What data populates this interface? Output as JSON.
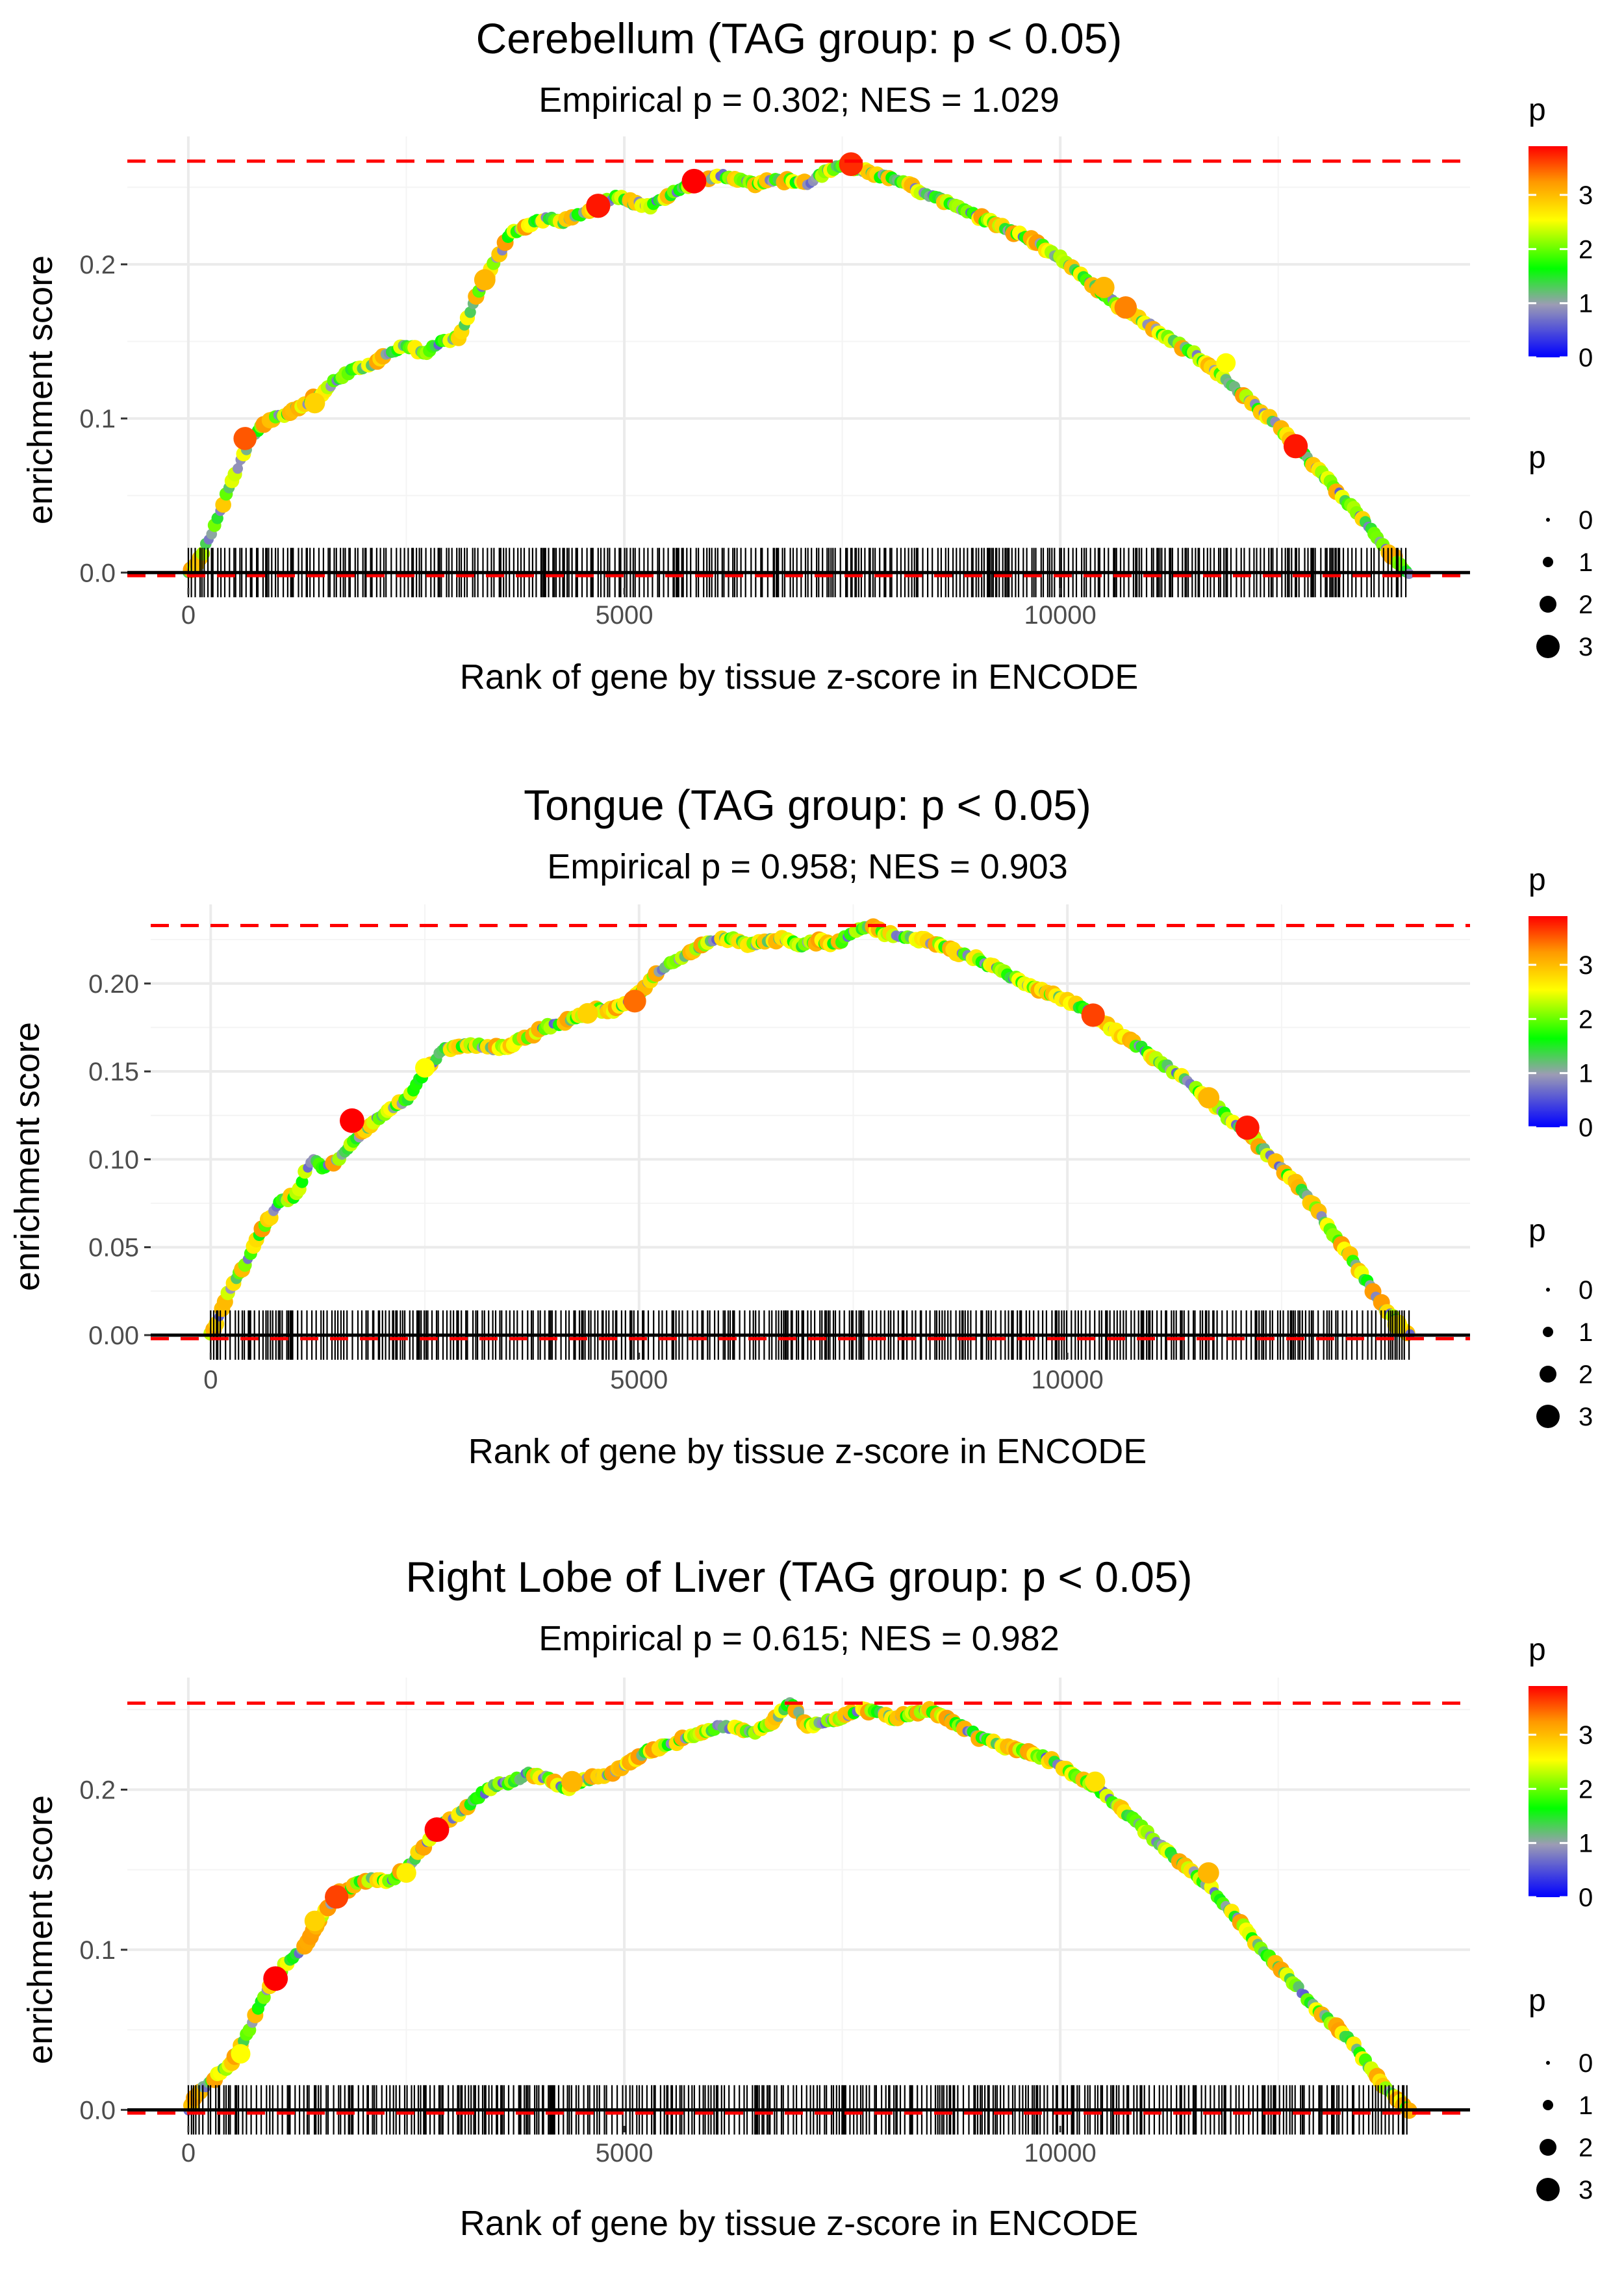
{
  "chart_data": [
    {
      "type": "line",
      "title": "Cerebellum (TAG group: p < 0.05)",
      "subtitle": "Empirical p = 0.302; NES = 1.029",
      "xlabel": "Rank of gene by tissue z-score in ENCODE",
      "ylabel": "enrichment score",
      "xlim": [
        -700,
        14700
      ],
      "ylim": [
        -0.01,
        0.283
      ],
      "x_ticks": [
        0,
        5000,
        10000
      ],
      "x_tick_labels": [
        "0",
        "5000",
        "10000"
      ],
      "y_ticks": [
        0.0,
        0.1,
        0.2
      ],
      "y_tick_labels": [
        "0.0",
        "0.1",
        "0.2"
      ],
      "max_es": 0.267,
      "min_es": -0.002,
      "n_genes": 14000,
      "curve": [
        [
          0,
          0
        ],
        [
          100,
          0.005
        ],
        [
          300,
          0.03
        ],
        [
          500,
          0.06
        ],
        [
          700,
          0.085
        ],
        [
          900,
          0.098
        ],
        [
          1100,
          0.103
        ],
        [
          1300,
          0.108
        ],
        [
          1500,
          0.115
        ],
        [
          1700,
          0.125
        ],
        [
          1900,
          0.132
        ],
        [
          2100,
          0.135
        ],
        [
          2300,
          0.142
        ],
        [
          2500,
          0.148
        ],
        [
          2700,
          0.142
        ],
        [
          2900,
          0.15
        ],
        [
          3100,
          0.153
        ],
        [
          3300,
          0.178
        ],
        [
          3500,
          0.2
        ],
        [
          3700,
          0.22
        ],
        [
          3900,
          0.225
        ],
        [
          4100,
          0.23
        ],
        [
          4300,
          0.228
        ],
        [
          4500,
          0.232
        ],
        [
          4700,
          0.238
        ],
        [
          4900,
          0.244
        ],
        [
          5100,
          0.24
        ],
        [
          5300,
          0.238
        ],
        [
          5500,
          0.245
        ],
        [
          5700,
          0.25
        ],
        [
          5900,
          0.255
        ],
        [
          6100,
          0.258
        ],
        [
          6300,
          0.255
        ],
        [
          6500,
          0.252
        ],
        [
          6700,
          0.255
        ],
        [
          6900,
          0.254
        ],
        [
          7100,
          0.252
        ],
        [
          7300,
          0.26
        ],
        [
          7500,
          0.265
        ],
        [
          7700,
          0.262
        ],
        [
          7900,
          0.258
        ],
        [
          8100,
          0.256
        ],
        [
          8300,
          0.25
        ],
        [
          8500,
          0.245
        ],
        [
          8700,
          0.24
        ],
        [
          8900,
          0.235
        ],
        [
          9100,
          0.23
        ],
        [
          9300,
          0.225
        ],
        [
          9500,
          0.22
        ],
        [
          9700,
          0.215
        ],
        [
          9900,
          0.208
        ],
        [
          10100,
          0.2
        ],
        [
          10300,
          0.19
        ],
        [
          10500,
          0.18
        ],
        [
          10700,
          0.172
        ],
        [
          10900,
          0.165
        ],
        [
          11100,
          0.158
        ],
        [
          11300,
          0.15
        ],
        [
          11500,
          0.143
        ],
        [
          11700,
          0.135
        ],
        [
          11900,
          0.125
        ],
        [
          12100,
          0.115
        ],
        [
          12300,
          0.105
        ],
        [
          12500,
          0.095
        ],
        [
          12700,
          0.082
        ],
        [
          12900,
          0.07
        ],
        [
          13100,
          0.058
        ],
        [
          13300,
          0.045
        ],
        [
          13500,
          0.032
        ],
        [
          13700,
          0.018
        ],
        [
          13900,
          0.005
        ],
        [
          14000,
          0
        ]
      ],
      "highlight_points": [
        [
          650,
          0.087,
          3.5
        ],
        [
          1450,
          0.11,
          2.8
        ],
        [
          3400,
          0.19,
          3.0
        ],
        [
          4700,
          0.238,
          3.8
        ],
        [
          5800,
          0.254,
          3.9
        ],
        [
          7600,
          0.265,
          3.7
        ],
        [
          10500,
          0.185,
          3.0
        ],
        [
          10750,
          0.172,
          3.3
        ],
        [
          11900,
          0.136,
          2.5
        ],
        [
          12700,
          0.082,
          3.8
        ]
      ],
      "color_legend": {
        "title": "p",
        "labels": [
          "0",
          "1",
          "2",
          "3"
        ]
      },
      "size_legend": {
        "title": "p",
        "labels": [
          "0",
          "1",
          "2",
          "3"
        ]
      }
    },
    {
      "type": "line",
      "title": "Tongue (TAG group: p < 0.05)",
      "subtitle": "Empirical p = 0.958; NES = 0.903",
      "xlabel": "Rank of gene by tissue z-score in ENCODE",
      "ylabel": "enrichment score",
      "xlim": [
        -700,
        14700
      ],
      "ylim": [
        -0.01,
        0.245
      ],
      "x_ticks": [
        0,
        5000,
        10000
      ],
      "x_tick_labels": [
        "0",
        "5000",
        "10000"
      ],
      "y_ticks": [
        0.0,
        0.05,
        0.1,
        0.15,
        0.2
      ],
      "y_tick_labels": [
        "0.00",
        "0.05",
        "0.10",
        "0.15",
        "0.20"
      ],
      "max_es": 0.233,
      "min_es": -0.002,
      "n_genes": 14000,
      "curve": [
        [
          0,
          0
        ],
        [
          100,
          0.01
        ],
        [
          200,
          0.025
        ],
        [
          400,
          0.04
        ],
        [
          600,
          0.06
        ],
        [
          800,
          0.075
        ],
        [
          1000,
          0.08
        ],
        [
          1100,
          0.092
        ],
        [
          1200,
          0.1
        ],
        [
          1300,
          0.095
        ],
        [
          1500,
          0.1
        ],
        [
          1700,
          0.112
        ],
        [
          1900,
          0.122
        ],
        [
          2100,
          0.128
        ],
        [
          2300,
          0.135
        ],
        [
          2500,
          0.15
        ],
        [
          2700,
          0.162
        ],
        [
          2900,
          0.165
        ],
        [
          3100,
          0.165
        ],
        [
          3300,
          0.163
        ],
        [
          3500,
          0.165
        ],
        [
          3700,
          0.17
        ],
        [
          3900,
          0.175
        ],
        [
          4100,
          0.178
        ],
        [
          4300,
          0.182
        ],
        [
          4500,
          0.185
        ],
        [
          4700,
          0.185
        ],
        [
          4900,
          0.19
        ],
        [
          5100,
          0.2
        ],
        [
          5300,
          0.21
        ],
        [
          5500,
          0.215
        ],
        [
          5700,
          0.22
        ],
        [
          5900,
          0.226
        ],
        [
          6100,
          0.225
        ],
        [
          6300,
          0.222
        ],
        [
          6500,
          0.225
        ],
        [
          6700,
          0.225
        ],
        [
          6900,
          0.222
        ],
        [
          7100,
          0.224
        ],
        [
          7300,
          0.222
        ],
        [
          7500,
          0.23
        ],
        [
          7700,
          0.232
        ],
        [
          7900,
          0.228
        ],
        [
          8100,
          0.226
        ],
        [
          8300,
          0.225
        ],
        [
          8500,
          0.222
        ],
        [
          8700,
          0.218
        ],
        [
          8900,
          0.215
        ],
        [
          9100,
          0.21
        ],
        [
          9300,
          0.205
        ],
        [
          9500,
          0.2
        ],
        [
          9700,
          0.196
        ],
        [
          9900,
          0.192
        ],
        [
          10100,
          0.188
        ],
        [
          10300,
          0.182
        ],
        [
          10500,
          0.175
        ],
        [
          10700,
          0.168
        ],
        [
          10900,
          0.162
        ],
        [
          11100,
          0.155
        ],
        [
          11300,
          0.148
        ],
        [
          11500,
          0.14
        ],
        [
          11700,
          0.132
        ],
        [
          11900,
          0.122
        ],
        [
          12100,
          0.115
        ],
        [
          12300,
          0.105
        ],
        [
          12500,
          0.095
        ],
        [
          12700,
          0.085
        ],
        [
          12900,
          0.072
        ],
        [
          13100,
          0.058
        ],
        [
          13300,
          0.045
        ],
        [
          13500,
          0.03
        ],
        [
          13700,
          0.015
        ],
        [
          13900,
          0.005
        ],
        [
          14000,
          0
        ]
      ],
      "highlight_points": [
        [
          1650,
          0.122,
          3.9
        ],
        [
          2500,
          0.152,
          2.5
        ],
        [
          4400,
          0.183,
          2.8
        ],
        [
          4950,
          0.19,
          3.4
        ],
        [
          10300,
          0.182,
          3.6
        ],
        [
          11650,
          0.135,
          3.0
        ],
        [
          12100,
          0.118,
          3.8
        ],
        [
          13850,
          0.006,
          2.6
        ]
      ],
      "color_legend": {
        "title": "p",
        "labels": [
          "0",
          "1",
          "2",
          "3"
        ]
      },
      "size_legend": {
        "title": "p",
        "labels": [
          "0",
          "1",
          "2",
          "3"
        ]
      }
    },
    {
      "type": "line",
      "title": "Right Lobe of Liver (TAG group: p < 0.05)",
      "subtitle": "Empirical p = 0.615; NES = 0.982",
      "xlabel": "Rank of gene by tissue z-score in ENCODE",
      "ylabel": "enrichment score",
      "xlim": [
        -700,
        14700
      ],
      "ylim": [
        -0.01,
        0.27
      ],
      "x_ticks": [
        0,
        5000,
        10000
      ],
      "x_tick_labels": [
        "0",
        "5000",
        "10000"
      ],
      "y_ticks": [
        0.0,
        0.1,
        0.2
      ],
      "y_tick_labels": [
        "0.0",
        "0.1",
        "0.2"
      ],
      "max_es": 0.254,
      "min_es": -0.002,
      "n_genes": 14000,
      "curve": [
        [
          0,
          0
        ],
        [
          100,
          0.01
        ],
        [
          300,
          0.02
        ],
        [
          500,
          0.03
        ],
        [
          700,
          0.05
        ],
        [
          900,
          0.075
        ],
        [
          1100,
          0.09
        ],
        [
          1300,
          0.1
        ],
        [
          1500,
          0.118
        ],
        [
          1700,
          0.135
        ],
        [
          1900,
          0.14
        ],
        [
          2100,
          0.145
        ],
        [
          2300,
          0.143
        ],
        [
          2500,
          0.15
        ],
        [
          2700,
          0.165
        ],
        [
          2900,
          0.178
        ],
        [
          3100,
          0.185
        ],
        [
          3300,
          0.195
        ],
        [
          3500,
          0.202
        ],
        [
          3700,
          0.205
        ],
        [
          3900,
          0.21
        ],
        [
          4100,
          0.208
        ],
        [
          4300,
          0.2
        ],
        [
          4500,
          0.205
        ],
        [
          4700,
          0.208
        ],
        [
          4900,
          0.212
        ],
        [
          5100,
          0.218
        ],
        [
          5300,
          0.225
        ],
        [
          5500,
          0.228
        ],
        [
          5700,
          0.232
        ],
        [
          5900,
          0.235
        ],
        [
          6100,
          0.24
        ],
        [
          6300,
          0.238
        ],
        [
          6500,
          0.235
        ],
        [
          6700,
          0.242
        ],
        [
          6900,
          0.255
        ],
        [
          7100,
          0.24
        ],
        [
          7300,
          0.242
        ],
        [
          7500,
          0.245
        ],
        [
          7700,
          0.25
        ],
        [
          7900,
          0.248
        ],
        [
          8100,
          0.245
        ],
        [
          8300,
          0.248
        ],
        [
          8500,
          0.25
        ],
        [
          8700,
          0.245
        ],
        [
          8900,
          0.238
        ],
        [
          9100,
          0.232
        ],
        [
          9300,
          0.228
        ],
        [
          9500,
          0.225
        ],
        [
          9700,
          0.222
        ],
        [
          9900,
          0.218
        ],
        [
          10100,
          0.212
        ],
        [
          10300,
          0.205
        ],
        [
          10500,
          0.198
        ],
        [
          10700,
          0.188
        ],
        [
          10900,
          0.178
        ],
        [
          11100,
          0.168
        ],
        [
          11300,
          0.158
        ],
        [
          11500,
          0.15
        ],
        [
          11700,
          0.14
        ],
        [
          11900,
          0.128
        ],
        [
          12100,
          0.115
        ],
        [
          12300,
          0.1
        ],
        [
          12500,
          0.09
        ],
        [
          12700,
          0.078
        ],
        [
          12900,
          0.065
        ],
        [
          13100,
          0.055
        ],
        [
          13300,
          0.045
        ],
        [
          13500,
          0.03
        ],
        [
          13700,
          0.015
        ],
        [
          13900,
          0.005
        ],
        [
          14000,
          0
        ]
      ],
      "highlight_points": [
        [
          600,
          0.035,
          2.5
        ],
        [
          1000,
          0.082,
          3.9
        ],
        [
          1450,
          0.118,
          2.8
        ],
        [
          1700,
          0.133,
          3.6
        ],
        [
          2500,
          0.148,
          2.6
        ],
        [
          2850,
          0.175,
          3.9
        ],
        [
          4400,
          0.205,
          3.0
        ],
        [
          10400,
          0.205,
          2.7
        ],
        [
          11700,
          0.148,
          3.0
        ]
      ],
      "color_legend": {
        "title": "p",
        "labels": [
          "0",
          "1",
          "2",
          "3"
        ]
      },
      "size_legend": {
        "title": "p",
        "labels": [
          "0",
          "1",
          "2",
          "3"
        ]
      }
    }
  ],
  "colors": {
    "dashed_line": "#ff0000",
    "gradient": [
      "#0000ff",
      "#9c9cb4",
      "#00ff00",
      "#ffff00",
      "#ff9900",
      "#ff0000"
    ],
    "gridline": "#ebebeb",
    "axis_text": "#4d4d4d"
  }
}
